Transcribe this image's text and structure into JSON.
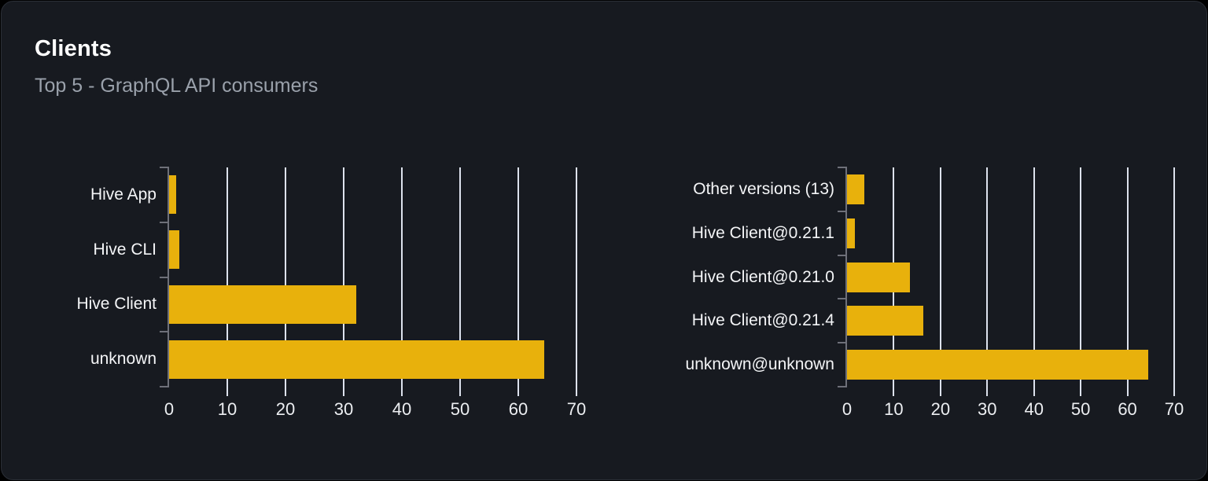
{
  "card": {
    "title": "Clients",
    "subtitle": "Top 5 - GraphQL API consumers"
  },
  "colors": {
    "bar": "#e8b10c",
    "gridline": "#dde2ed",
    "axis": "#6e7079",
    "card_background": "#171a20",
    "title_text": "#ffffff",
    "subtitle_text": "#9aa1ab",
    "label_text": "#f4f5f7"
  },
  "chart_data": [
    {
      "type": "bar",
      "orientation": "horizontal",
      "title": "",
      "xlabel": "",
      "ylabel": "",
      "categories": [
        "Hive App",
        "Hive CLI",
        "Hive Client",
        "unknown"
      ],
      "values": [
        1.2,
        1.8,
        32.2,
        64.4
      ],
      "xlim": [
        0,
        70
      ],
      "xticks": [
        0,
        10,
        20,
        30,
        40,
        50,
        60,
        70
      ],
      "grid": true,
      "legend": false,
      "bar_color": "#e8b10c"
    },
    {
      "type": "bar",
      "orientation": "horizontal",
      "title": "",
      "xlabel": "",
      "ylabel": "",
      "categories": [
        "Other versions (13)",
        "Hive Client@0.21.1",
        "Hive Client@0.21.0",
        "Hive Client@0.21.4",
        "unknown@unknown"
      ],
      "values": [
        3.7,
        1.7,
        13.5,
        16.3,
        64.4
      ],
      "xlim": [
        0,
        70
      ],
      "xticks": [
        0,
        10,
        20,
        30,
        40,
        50,
        60,
        70
      ],
      "grid": true,
      "legend": false,
      "bar_color": "#e8b10c"
    }
  ]
}
